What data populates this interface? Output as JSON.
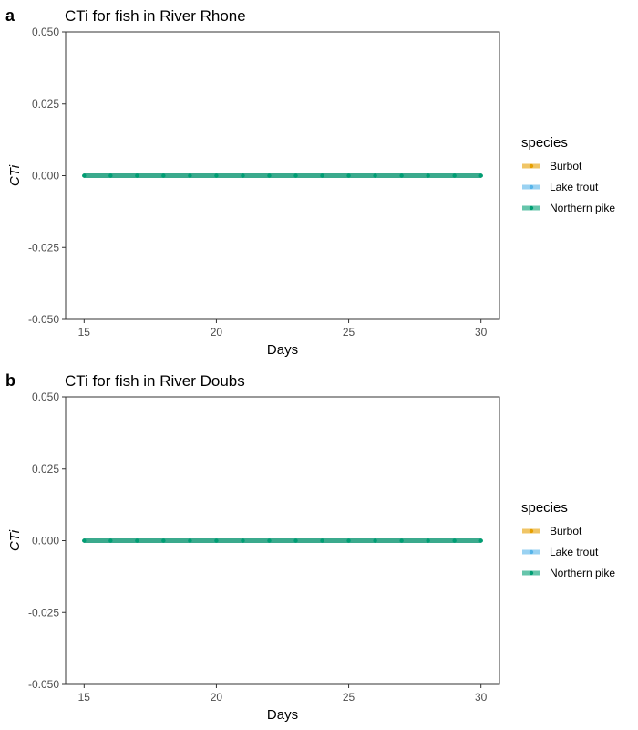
{
  "chart_data": [
    {
      "type": "line",
      "panel_label": "a",
      "title": "CTi for fish in River Rhone",
      "xlabel": "Days",
      "ylabel": "CTi",
      "xlim": [
        14.3,
        30.7
      ],
      "ylim": [
        -0.05,
        0.05
      ],
      "xticks": [
        15,
        20,
        25,
        30
      ],
      "yticks": [
        0.05,
        0.025,
        0.0,
        -0.025,
        -0.05
      ],
      "ytick_labels": [
        "0.050",
        "0.025",
        "0.000",
        "-0.025",
        "-0.050"
      ],
      "grid": false,
      "legend_position": "right",
      "legend_title": "species",
      "x": [
        15,
        16,
        17,
        18,
        19,
        20,
        21,
        22,
        23,
        24,
        25,
        26,
        27,
        28,
        29,
        30
      ],
      "series": [
        {
          "name": "Burbot",
          "color": "#E69F00",
          "values": [
            0,
            0,
            0,
            0,
            0,
            0,
            0,
            0,
            0,
            0,
            0,
            0,
            0,
            0,
            0,
            0
          ]
        },
        {
          "name": "Lake trout",
          "color": "#56B4E9",
          "values": [
            0,
            0,
            0,
            0,
            0,
            0,
            0,
            0,
            0,
            0,
            0,
            0,
            0,
            0,
            0,
            0
          ]
        },
        {
          "name": "Northern pike",
          "color": "#009E73",
          "values": [
            0,
            0,
            0,
            0,
            0,
            0,
            0,
            0,
            0,
            0,
            0,
            0,
            0,
            0,
            0,
            0
          ]
        }
      ]
    },
    {
      "type": "line",
      "panel_label": "b",
      "title": "CTi for fish in River Doubs",
      "xlabel": "Days",
      "ylabel": "CTi",
      "xlim": [
        14.3,
        30.7
      ],
      "ylim": [
        -0.05,
        0.05
      ],
      "xticks": [
        15,
        20,
        25,
        30
      ],
      "yticks": [
        0.05,
        0.025,
        0.0,
        -0.025,
        -0.05
      ],
      "ytick_labels": [
        "0.050",
        "0.025",
        "0.000",
        "-0.025",
        "-0.050"
      ],
      "grid": false,
      "legend_position": "right",
      "legend_title": "species",
      "x": [
        15,
        16,
        17,
        18,
        19,
        20,
        21,
        22,
        23,
        24,
        25,
        26,
        27,
        28,
        29,
        30
      ],
      "series": [
        {
          "name": "Burbot",
          "color": "#E69F00",
          "values": [
            0,
            0,
            0,
            0,
            0,
            0,
            0,
            0,
            0,
            0,
            0,
            0,
            0,
            0,
            0,
            0
          ]
        },
        {
          "name": "Lake trout",
          "color": "#56B4E9",
          "values": [
            0,
            0,
            0,
            0,
            0,
            0,
            0,
            0,
            0,
            0,
            0,
            0,
            0,
            0,
            0,
            0
          ]
        },
        {
          "name": "Northern pike",
          "color": "#009E73",
          "values": [
            0,
            0,
            0,
            0,
            0,
            0,
            0,
            0,
            0,
            0,
            0,
            0,
            0,
            0,
            0,
            0
          ]
        }
      ]
    }
  ]
}
